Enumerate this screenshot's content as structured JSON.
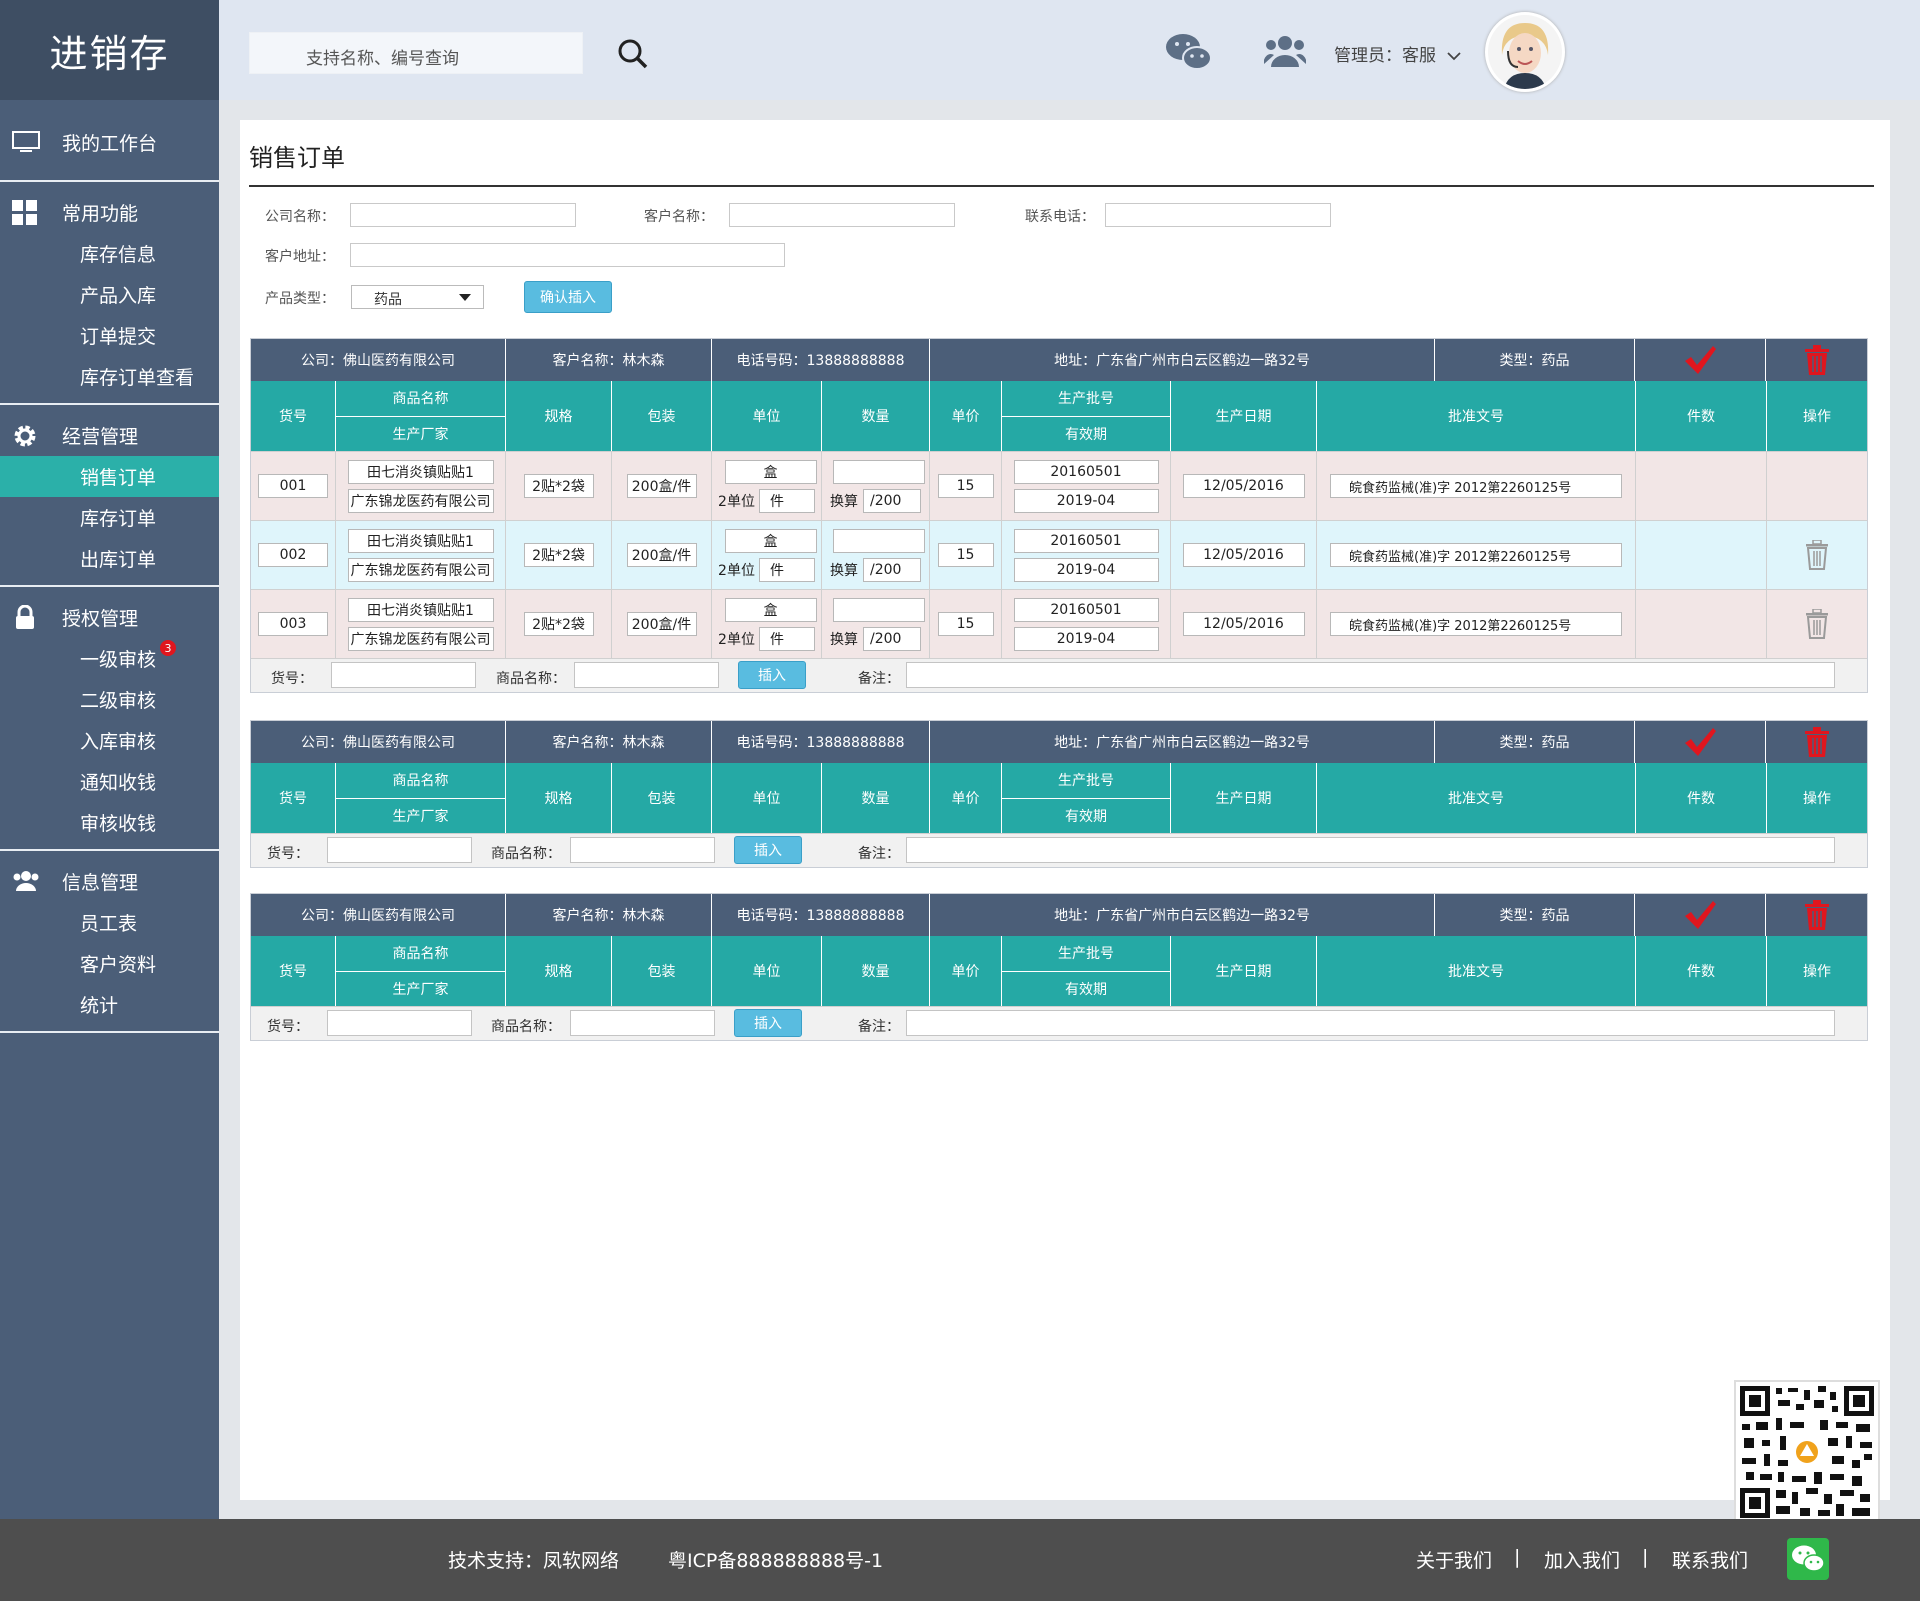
{
  "app": {
    "title": "进销存"
  },
  "sidebar": {
    "workbench": "我的工作台",
    "groups": [
      {
        "label": "常用功能",
        "items": [
          "库存信息",
          "产品入库",
          "订单提交",
          "库存订单查看"
        ]
      },
      {
        "label": "经营管理",
        "items": [
          "销售订单",
          "库存订单",
          "出库订单"
        ],
        "active": "销售订单"
      },
      {
        "label": "授权管理",
        "items": [
          "一级审核",
          "二级审核",
          "入库审核",
          "通知收钱",
          "审核收钱"
        ],
        "badge": "3"
      },
      {
        "label": "信息管理",
        "items": [
          "员工表",
          "客户资料",
          "统计"
        ]
      }
    ]
  },
  "header": {
    "search_placeholder": "支持名称、编号查询",
    "admin_label": "管理员：客服"
  },
  "page": {
    "title": "销售订单",
    "form": {
      "company_label": "公司名称：",
      "customer_label": "客户名称：",
      "phone_label": "联系电话：",
      "address_label": "客户地址：",
      "type_label": "产品类型：",
      "type_value": "药品",
      "confirm_label": "确认插入"
    }
  },
  "order_header": {
    "company": "公司：佛山医药有限公司",
    "customer": "客户名称：林木森",
    "phone": "电话号码：13888888888",
    "address": "地址：广东省广州市白云区鹤边一路32号",
    "type": "类型：药品"
  },
  "columns": {
    "code": "货号",
    "name": "商品名称",
    "maker": "生产厂家",
    "spec": "规格",
    "pack": "包装",
    "unit": "单位",
    "qty": "数量",
    "price": "单价",
    "batch": "生产批号",
    "expire": "有效期",
    "prod_date": "生产日期",
    "approval": "批准文号",
    "pieces": "件数",
    "action": "操作"
  },
  "rows": [
    {
      "code": "001",
      "name": "田七消炎镇贴贴1",
      "maker": "广东锦龙医药有限公司",
      "spec": "2贴*2袋",
      "pack": "200盒/件",
      "unit": "盒",
      "unit2_label": "2单位",
      "unit2": "件",
      "conv_label": "换算",
      "conv": "/200",
      "price": "15",
      "batch": "20160501",
      "expire": "2019-04",
      "prod_date": "12/05/2016",
      "approval": "皖食药监械(准)字 2012第2260125号"
    },
    {
      "code": "002",
      "name": "田七消炎镇贴贴1",
      "maker": "广东锦龙医药有限公司",
      "spec": "2贴*2袋",
      "pack": "200盒/件",
      "unit": "盒",
      "unit2_label": "2单位",
      "unit2": "件",
      "conv_label": "换算",
      "conv": "/200",
      "price": "15",
      "batch": "20160501",
      "expire": "2019-04",
      "prod_date": "12/05/2016",
      "approval": "皖食药监械(准)字 2012第2260125号"
    },
    {
      "code": "003",
      "name": "田七消炎镇贴贴1",
      "maker": "广东锦龙医药有限公司",
      "spec": "2贴*2袋",
      "pack": "200盒/件",
      "unit": "盒",
      "unit2_label": "2单位",
      "unit2": "件",
      "conv_label": "换算",
      "conv": "/200",
      "price": "15",
      "batch": "20160501",
      "expire": "2019-04",
      "prod_date": "12/05/2016",
      "approval": "皖食药监械(准)字 2012第2260125号"
    }
  ],
  "insert_bar": {
    "code_label": "货号：",
    "name_label": "商品名称：",
    "insert_label": "插入",
    "note_label": "备注："
  },
  "footer": {
    "support": "技术支持：凤软网络",
    "icp": "粤ICP备888888888号-1",
    "about": "关于我们",
    "join": "加入我们",
    "contact": "联系我们",
    "sep": "|"
  },
  "colors": {
    "sidebar": "#4b5e78",
    "teal": "#25a9a5",
    "button": "#59bce0",
    "red": "#e0161e"
  }
}
